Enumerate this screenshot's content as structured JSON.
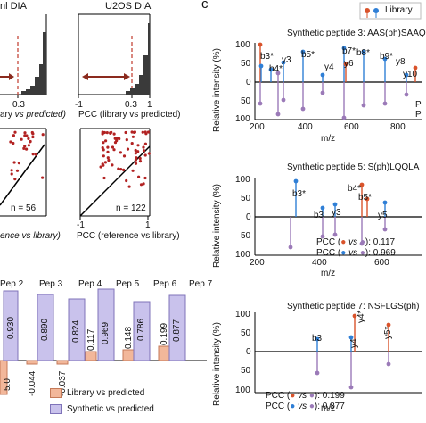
{
  "panel_c_letter": "c",
  "hist_left": {
    "title": "nl DIA",
    "sig": "0.3",
    "xlabel": "vs predicted)",
    "xlabel_prefix": "ary "
  },
  "hist_right": {
    "title": "U2OS DIA",
    "ticks": [
      "-1",
      "0.3",
      "1"
    ],
    "xlabel": "PCC (library vs predicted)"
  },
  "scatter_left": {
    "n": "n = 56",
    "xlabel": "ence vs library)"
  },
  "scatter_right": {
    "n": "n = 122",
    "ticks": [
      "-1",
      "1"
    ],
    "xlabel": "PCC (reference vs library)"
  },
  "bars": {
    "peps": [
      "Pep 2",
      "Pep 3",
      "Pep 4",
      "Pep 5",
      "Pep 6",
      "Pep 7"
    ],
    "synthetic": [
      "0.930",
      "0.890",
      "0.824",
      "0.969",
      "0.786",
      "0.877"
    ],
    "library": [
      "",
      "-0.044",
      "-0.037",
      "0.117",
      "0.148",
      "0.199"
    ],
    "partial_left_label": "5.0",
    "legend": {
      "library": "Library vs predicted",
      "synthetic": "Synthetic vs predicted"
    },
    "colors": {
      "library": "#f2b79a",
      "synthetic": "#c9c2ec"
    }
  },
  "spectra": {
    "legend_label": "Library",
    "ylabel": "Relative intensity (%)",
    "xlabel": "m/z",
    "yticks": [
      "100",
      "50",
      "0",
      "50",
      "100"
    ],
    "p1": {
      "title": "Synthetic peptide 3: AAS(ph)SAAQ",
      "xticks": [
        "200",
        "400",
        "600",
        "800"
      ],
      "ions": [
        "b3*",
        "b4*",
        "y3",
        "b5*",
        "y4",
        "b7*",
        "y6",
        "b8*",
        "b9*",
        "y8",
        "y10"
      ],
      "side": [
        "P",
        "P"
      ]
    },
    "p2": {
      "title": "Synthetic peptide 5: S(ph)LQQLA",
      "xticks": [
        "200",
        "400",
        "600"
      ],
      "ions": [
        "b3*",
        "b4*",
        "b3",
        "y3",
        "b5*",
        "y5"
      ],
      "pcc1": "0.117",
      "pcc2": "0.969"
    },
    "p3": {
      "title": "Synthetic peptide 7: NSFLGS(ph)",
      "xticks": [],
      "ions": [
        "b3",
        "y4*",
        "y4",
        "y5*"
      ],
      "pcc1": "0.199",
      "pcc2": "0.877"
    },
    "pcc_prefix": "PCC (",
    "pcc_vs": "vs",
    "pcc_suffix": "):",
    "colors": {
      "library": "#d9532b",
      "reference": "#2f7fd6",
      "synthetic": "#9b7ab8"
    }
  }
}
